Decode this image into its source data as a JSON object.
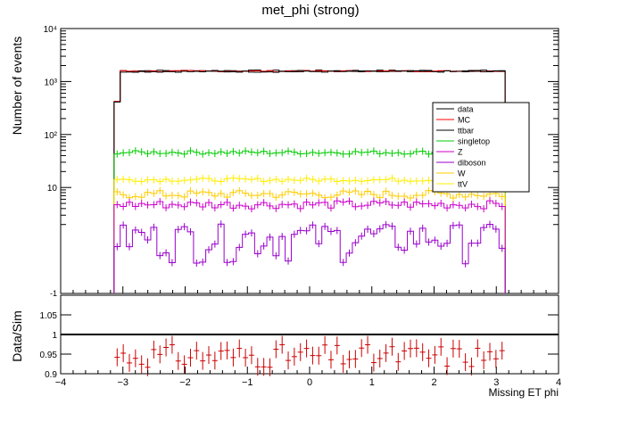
{
  "chart_data": [
    {
      "type": "histogram",
      "title": "met_phi (strong)",
      "ylabel": "Number  of  events",
      "xlabel": "",
      "xlim": [
        -4,
        4
      ],
      "ylim_log": [
        0.1,
        10000
      ],
      "y_scale": "log",
      "y_tick_labels": [
        "10",
        "10²",
        "10³",
        "10⁴"
      ],
      "y_tick_values": [
        10,
        100,
        1000,
        10000
      ],
      "bins": {
        "start": -3.1416,
        "end": 3.1416,
        "count": 64
      },
      "legend": {
        "placement": "right",
        "entries": [
          {
            "label": "data",
            "color": "#000000"
          },
          {
            "label": "MC",
            "color": "#ff0000"
          },
          {
            "label": "ttbar",
            "color": "#000000"
          },
          {
            "label": "singletop",
            "color": "#00cc00"
          },
          {
            "label": "Z",
            "color": "#cc00cc"
          },
          {
            "label": "diboson",
            "color": "#9900cc"
          },
          {
            "label": "W",
            "color": "#ffcc00"
          },
          {
            "label": "ttV",
            "color": "#ffee00"
          }
        ]
      },
      "series": [
        {
          "name": "data",
          "color": "#000000",
          "approx_level": 1600,
          "edge_first_bin": 420
        },
        {
          "name": "MC",
          "color": "#ff0000",
          "approx_level": 1570,
          "edge_first_bin": 420
        },
        {
          "name": "ttbar",
          "color": "#000000",
          "approx_level": 1540,
          "edge_first_bin": 410
        },
        {
          "name": "singletop",
          "color": "#00cc00",
          "approx_level": 46
        },
        {
          "name": "W",
          "color": "#ffcc00",
          "approx_level": 7.5
        },
        {
          "name": "ttV",
          "color": "#ffee00",
          "approx_level": 14
        },
        {
          "name": "Z",
          "color": "#cc00cc",
          "approx_level": 4.8
        },
        {
          "name": "diboson",
          "color": "#9900cc",
          "approx_level": 1.2
        }
      ]
    },
    {
      "type": "scatter",
      "ylabel": "Data/Sim",
      "xlabel": "Missing ET phi",
      "xlim": [
        -4,
        4
      ],
      "ylim": [
        0.9,
        1.1
      ],
      "x_ticks": [
        -4,
        -3,
        -2,
        -1,
        0,
        1,
        2,
        3,
        4
      ],
      "y_ticks": [
        0.9,
        0.95,
        1,
        1.05
      ],
      "x_tick_labels": [
        "−4",
        "−3",
        "−2",
        "−1",
        "0",
        "1",
        "2",
        "3",
        "4"
      ],
      "y_tick_labels": [
        "0.9",
        "0.95",
        "1",
        "1.05"
      ],
      "reference_line": 1.0,
      "series": [
        {
          "name": "ratio",
          "color": "#cc0000"
        }
      ]
    }
  ]
}
